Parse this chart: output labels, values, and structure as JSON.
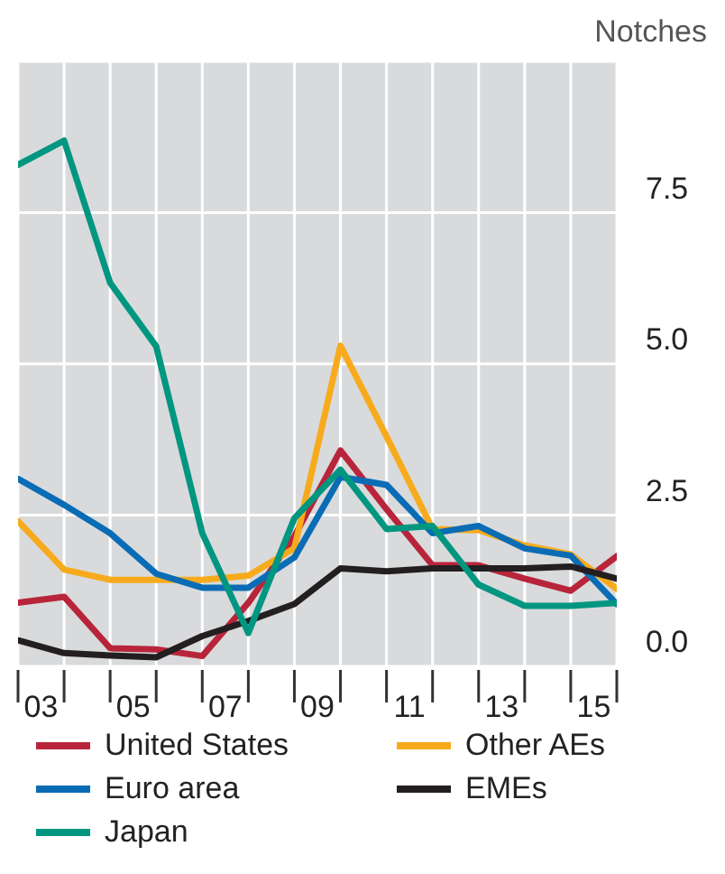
{
  "chart_data": {
    "type": "line",
    "ylabel": "Notches",
    "x": [
      2002.5,
      2003.5,
      2004.5,
      2005.5,
      2006.5,
      2007.5,
      2008.5,
      2009.5,
      2010.5,
      2011.5,
      2012.5,
      2013.5,
      2014.5,
      2015.5
    ],
    "series": [
      {
        "name": "United States",
        "color": "#b8253b",
        "values": [
          1.05,
          1.15,
          0.3,
          0.28,
          0.17,
          1.05,
          2.15,
          3.57,
          2.6,
          1.67,
          1.67,
          1.45,
          1.25,
          1.82
        ]
      },
      {
        "name": "Other AEs",
        "color": "#f7ab1c",
        "values": [
          2.4,
          1.6,
          1.43,
          1.43,
          1.43,
          1.5,
          1.95,
          5.3,
          3.8,
          2.27,
          2.25,
          2.0,
          1.85,
          1.28
        ]
      },
      {
        "name": "Euro area",
        "color": "#0a6cb5",
        "values": [
          3.1,
          2.67,
          2.2,
          1.53,
          1.3,
          1.3,
          1.8,
          3.13,
          3.0,
          2.2,
          2.32,
          1.95,
          1.83,
          1.03
        ]
      },
      {
        "name": "EMEs",
        "color": "#231f20",
        "values": [
          0.43,
          0.22,
          0.18,
          0.15,
          0.5,
          0.75,
          1.03,
          1.62,
          1.57,
          1.62,
          1.62,
          1.62,
          1.65,
          1.45
        ]
      },
      {
        "name": "Japan",
        "color": "#009680",
        "values": [
          8.29,
          8.69,
          6.34,
          5.29,
          2.2,
          0.55,
          2.45,
          3.25,
          2.27,
          2.32,
          1.35,
          1.0,
          1.0,
          1.05
        ]
      }
    ],
    "xlim": [
      2002.5,
      2015.5
    ],
    "xticks": [
      {
        "value": 2002.5,
        "label": null
      },
      {
        "value": 2003,
        "label": "03"
      },
      {
        "value": 2003.5,
        "label": null
      },
      {
        "value": 2004.5,
        "label": null
      },
      {
        "value": 2005,
        "label": "05"
      },
      {
        "value": 2005.5,
        "label": null
      },
      {
        "value": 2006.5,
        "label": null
      },
      {
        "value": 2007,
        "label": "07"
      },
      {
        "value": 2007.5,
        "label": null
      },
      {
        "value": 2008.5,
        "label": null
      },
      {
        "value": 2009,
        "label": "09"
      },
      {
        "value": 2009.5,
        "label": null
      },
      {
        "value": 2010.5,
        "label": null
      },
      {
        "value": 2011,
        "label": "11"
      },
      {
        "value": 2011.5,
        "label": null
      },
      {
        "value": 2012.5,
        "label": null
      },
      {
        "value": 2013,
        "label": "13"
      },
      {
        "value": 2013.5,
        "label": null
      },
      {
        "value": 2014.5,
        "label": null
      },
      {
        "value": 2015,
        "label": "15"
      },
      {
        "value": 2015.5,
        "label": null
      }
    ],
    "ylim": [
      0,
      10
    ],
    "yticks": [
      {
        "value": 0,
        "label": "0.0"
      },
      2.5,
      {
        "value": 5,
        "label": "5.0"
      },
      7.5
    ],
    "grid": true,
    "legend": "bottom",
    "marker": "none",
    "line_style": "solid"
  }
}
